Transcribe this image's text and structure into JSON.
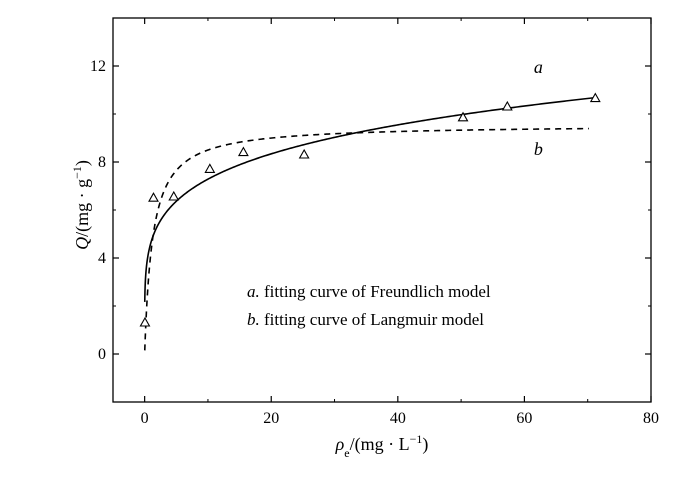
{
  "chart_data": {
    "type": "scatter",
    "xlabel": "ρe/(mg · L⁻¹)",
    "ylabel": "Q/(mg · g⁻¹)",
    "xlim": [
      -5,
      80
    ],
    "ylim": [
      -2,
      14
    ],
    "xticks": [
      0,
      20,
      40,
      60,
      80
    ],
    "yticks": [
      0,
      4,
      8,
      12
    ],
    "xtick_labels": [
      "0",
      "20",
      "40",
      "60",
      "80"
    ],
    "ytick_labels": [
      "0",
      "4",
      "8",
      "12"
    ],
    "grid": false,
    "legend_position": "inside-center",
    "legend": [
      {
        "letter": "a.",
        "text": " fitting curve of Freundlich model"
      },
      {
        "letter": "b.",
        "text": " fitting curve of Langmuir model"
      }
    ],
    "curve_labels": [
      {
        "text": "a",
        "x": 61.5,
        "y": 11.7
      },
      {
        "text": "b",
        "x": 61.5,
        "y": 8.3
      }
    ],
    "series": [
      {
        "key": "experimental",
        "marker": "triangle-open",
        "x": [
          0.05,
          1.4,
          4.6,
          10.3,
          15.6,
          25.2,
          50.3,
          57.3,
          71.2
        ],
        "y": [
          1.3,
          6.5,
          6.55,
          7.7,
          8.4,
          8.3,
          9.85,
          10.3,
          10.65
        ]
      },
      {
        "key": "freundlich",
        "line": "solid",
        "model": {
          "kind": "freundlich",
          "K": 4.65,
          "n": 0.195,
          "xmin": 0.02,
          "xmax": 71.2
        }
      },
      {
        "key": "langmuir",
        "line": "dashed",
        "model": {
          "kind": "langmuir",
          "Qm": 9.56,
          "b": 0.8,
          "xmin": 0.02,
          "xmax": 70.2
        }
      }
    ]
  }
}
